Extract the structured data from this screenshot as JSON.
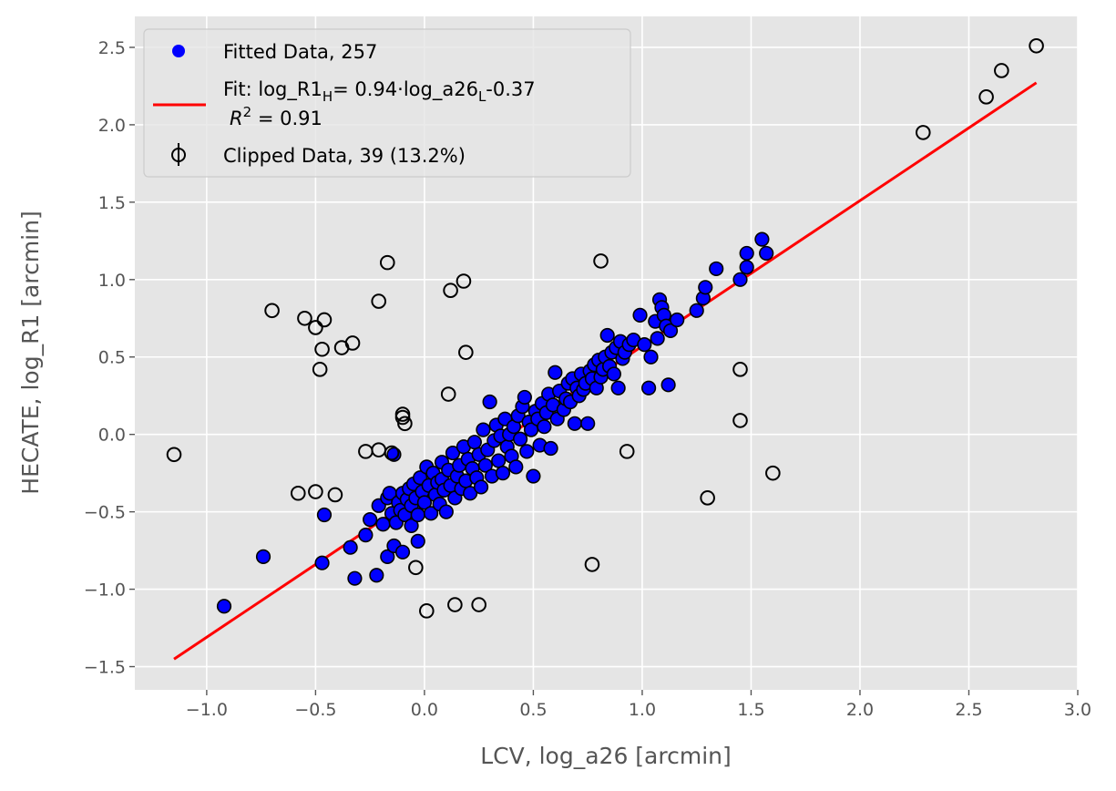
{
  "chart_data": {
    "type": "scatter",
    "title": "",
    "xlabel": "LCV, log_a26 [arcmin]",
    "ylabel": "HECATE, log_R1 [arcmin]",
    "xlim": [
      -1.33,
      3.0
    ],
    "ylim": [
      -1.65,
      2.7
    ],
    "xticks": [
      -1.0,
      -0.5,
      0.0,
      0.5,
      1.0,
      1.5,
      2.0,
      2.5,
      3.0
    ],
    "xtick_labels": [
      "−1.0",
      "−0.5",
      "0.0",
      "0.5",
      "1.0",
      "1.5",
      "2.0",
      "2.5",
      "3.0"
    ],
    "yticks": [
      -1.5,
      -1.0,
      -0.5,
      0.0,
      0.5,
      1.0,
      1.5,
      2.0,
      2.5
    ],
    "ytick_labels": [
      "−1.5",
      "−1.0",
      "−0.5",
      "0.0",
      "0.5",
      "1.0",
      "1.5",
      "2.0",
      "2.5"
    ],
    "grid": true,
    "legend_position": "top-left",
    "colors": {
      "background": "#E5E5E5",
      "grid": "#FFFFFF",
      "fitted": "#0000FF",
      "marker_edge": "#000000",
      "fit_line": "#FF0000",
      "axis_text": "#555555"
    },
    "legend": {
      "fitted_label": "Fitted Data, 257",
      "fit_label_line1_pre": "Fit: log_R1",
      "fit_label_line1_sub1": "H",
      "fit_label_line1_mid": "= 0.94·log_a26",
      "fit_label_line1_sub2": "L",
      "fit_label_line1_post": "-0.37",
      "fit_label_line2_r": "R",
      "fit_label_line2_sup": "2",
      "fit_label_line2_val": " =  0.91",
      "clipped_label": "Clipped Data, 39 (13.2%)"
    },
    "fit_line": {
      "slope": 0.94,
      "intercept": -0.37,
      "x_range": [
        -1.15,
        2.81
      ]
    },
    "series": [
      {
        "name": "Fitted Data, 257",
        "marker": "filled-circle",
        "points": [
          [
            -0.92,
            -1.11
          ],
          [
            -0.74,
            -0.79
          ],
          [
            -0.47,
            -0.83
          ],
          [
            -0.46,
            -0.52
          ],
          [
            -0.34,
            -0.73
          ],
          [
            -0.32,
            -0.93
          ],
          [
            -0.27,
            -0.65
          ],
          [
            -0.25,
            -0.55
          ],
          [
            -0.22,
            -0.91
          ],
          [
            -0.21,
            -0.46
          ],
          [
            -0.19,
            -0.58
          ],
          [
            -0.17,
            -0.79
          ],
          [
            -0.17,
            -0.41
          ],
          [
            -0.16,
            -0.38
          ],
          [
            -0.15,
            -0.51
          ],
          [
            -0.14,
            -0.72
          ],
          [
            -0.14,
            -0.13
          ],
          [
            -0.13,
            -0.57
          ],
          [
            -0.12,
            -0.44
          ],
          [
            -0.11,
            -0.49
          ],
          [
            -0.1,
            -0.76
          ],
          [
            -0.1,
            -0.38
          ],
          [
            -0.09,
            -0.52
          ],
          [
            -0.08,
            -0.42
          ],
          [
            -0.07,
            -0.35
          ],
          [
            -0.06,
            -0.59
          ],
          [
            -0.06,
            -0.46
          ],
          [
            -0.05,
            -0.32
          ],
          [
            -0.04,
            -0.41
          ],
          [
            -0.03,
            -0.69
          ],
          [
            -0.03,
            -0.52
          ],
          [
            -0.02,
            -0.28
          ],
          [
            -0.01,
            -0.37
          ],
          [
            0.0,
            -0.44
          ],
          [
            0.01,
            -0.21
          ],
          [
            0.02,
            -0.33
          ],
          [
            0.03,
            -0.51
          ],
          [
            0.04,
            -0.25
          ],
          [
            0.05,
            -0.39
          ],
          [
            0.06,
            -0.31
          ],
          [
            0.07,
            -0.45
          ],
          [
            0.08,
            -0.18
          ],
          [
            0.08,
            -0.29
          ],
          [
            0.09,
            -0.36
          ],
          [
            0.1,
            -0.5
          ],
          [
            0.11,
            -0.23
          ],
          [
            0.12,
            -0.33
          ],
          [
            0.13,
            -0.12
          ],
          [
            0.14,
            -0.41
          ],
          [
            0.15,
            -0.27
          ],
          [
            0.16,
            -0.2
          ],
          [
            0.17,
            -0.35
          ],
          [
            0.18,
            -0.08
          ],
          [
            0.19,
            -0.3
          ],
          [
            0.2,
            -0.16
          ],
          [
            0.21,
            -0.38
          ],
          [
            0.22,
            -0.22
          ],
          [
            0.23,
            -0.05
          ],
          [
            0.24,
            -0.28
          ],
          [
            0.25,
            -0.13
          ],
          [
            0.26,
            -0.34
          ],
          [
            0.27,
            0.03
          ],
          [
            0.28,
            -0.2
          ],
          [
            0.29,
            -0.1
          ],
          [
            0.3,
            0.21
          ],
          [
            0.31,
            -0.27
          ],
          [
            0.32,
            -0.04
          ],
          [
            0.33,
            0.06
          ],
          [
            0.34,
            -0.17
          ],
          [
            0.35,
            -0.01
          ],
          [
            0.36,
            -0.25
          ],
          [
            0.37,
            0.1
          ],
          [
            0.38,
            -0.08
          ],
          [
            0.39,
            0.0
          ],
          [
            0.4,
            -0.14
          ],
          [
            0.41,
            0.05
          ],
          [
            0.42,
            -0.21
          ],
          [
            0.43,
            0.12
          ],
          [
            0.44,
            -0.03
          ],
          [
            0.45,
            0.18
          ],
          [
            0.46,
            0.24
          ],
          [
            0.47,
            -0.11
          ],
          [
            0.48,
            0.08
          ],
          [
            0.49,
            0.03
          ],
          [
            0.5,
            -0.27
          ],
          [
            0.51,
            0.15
          ],
          [
            0.52,
            0.1
          ],
          [
            0.53,
            -0.07
          ],
          [
            0.54,
            0.2
          ],
          [
            0.55,
            0.05
          ],
          [
            0.56,
            0.14
          ],
          [
            0.57,
            0.26
          ],
          [
            0.58,
            -0.09
          ],
          [
            0.59,
            0.19
          ],
          [
            0.6,
            0.4
          ],
          [
            0.61,
            0.1
          ],
          [
            0.62,
            0.28
          ],
          [
            0.64,
            0.16
          ],
          [
            0.65,
            0.23
          ],
          [
            0.66,
            0.33
          ],
          [
            0.67,
            0.21
          ],
          [
            0.68,
            0.36
          ],
          [
            0.69,
            0.07
          ],
          [
            0.7,
            0.3
          ],
          [
            0.71,
            0.25
          ],
          [
            0.72,
            0.39
          ],
          [
            0.73,
            0.29
          ],
          [
            0.74,
            0.33
          ],
          [
            0.75,
            0.07
          ],
          [
            0.76,
            0.41
          ],
          [
            0.77,
            0.36
          ],
          [
            0.78,
            0.45
          ],
          [
            0.79,
            0.3
          ],
          [
            0.8,
            0.48
          ],
          [
            0.81,
            0.37
          ],
          [
            0.82,
            0.42
          ],
          [
            0.83,
            0.5
          ],
          [
            0.84,
            0.64
          ],
          [
            0.85,
            0.44
          ],
          [
            0.86,
            0.53
          ],
          [
            0.87,
            0.39
          ],
          [
            0.88,
            0.56
          ],
          [
            0.89,
            0.3
          ],
          [
            0.9,
            0.6
          ],
          [
            0.91,
            0.49
          ],
          [
            0.92,
            0.53
          ],
          [
            0.94,
            0.58
          ],
          [
            0.96,
            0.61
          ],
          [
            0.99,
            0.77
          ],
          [
            1.01,
            0.58
          ],
          [
            1.03,
            0.3
          ],
          [
            1.04,
            0.5
          ],
          [
            1.06,
            0.73
          ],
          [
            1.07,
            0.62
          ],
          [
            1.08,
            0.87
          ],
          [
            1.09,
            0.82
          ],
          [
            1.1,
            0.77
          ],
          [
            1.11,
            0.7
          ],
          [
            1.12,
            0.32
          ],
          [
            1.13,
            0.67
          ],
          [
            1.16,
            0.74
          ],
          [
            1.25,
            0.8
          ],
          [
            1.28,
            0.88
          ],
          [
            1.29,
            0.95
          ],
          [
            1.34,
            1.07
          ],
          [
            1.45,
            1.0
          ],
          [
            1.48,
            1.08
          ],
          [
            1.48,
            1.17
          ],
          [
            1.55,
            1.26
          ],
          [
            1.57,
            1.17
          ]
        ]
      },
      {
        "name": "Clipped Data, 39 (13.2%)",
        "marker": "open-circle",
        "points": [
          [
            -1.15,
            -0.13
          ],
          [
            -0.7,
            0.8
          ],
          [
            -0.58,
            -0.38
          ],
          [
            -0.55,
            0.75
          ],
          [
            -0.5,
            0.69
          ],
          [
            -0.5,
            -0.37
          ],
          [
            -0.48,
            0.42
          ],
          [
            -0.47,
            0.55
          ],
          [
            -0.46,
            0.74
          ],
          [
            -0.38,
            0.56
          ],
          [
            -0.33,
            0.59
          ],
          [
            -0.27,
            -0.11
          ],
          [
            -0.21,
            0.86
          ],
          [
            -0.21,
            -0.1
          ],
          [
            -0.17,
            1.11
          ],
          [
            -0.15,
            -0.12
          ],
          [
            -0.1,
            0.11
          ],
          [
            -0.1,
            0.13
          ],
          [
            -0.09,
            0.07
          ],
          [
            -0.04,
            -0.86
          ],
          [
            0.01,
            -1.14
          ],
          [
            0.11,
            0.26
          ],
          [
            0.12,
            0.93
          ],
          [
            0.14,
            -1.1
          ],
          [
            0.18,
            0.99
          ],
          [
            0.19,
            0.53
          ],
          [
            0.25,
            -1.1
          ],
          [
            0.77,
            -0.84
          ],
          [
            0.81,
            1.12
          ],
          [
            0.93,
            -0.11
          ],
          [
            1.3,
            -0.41
          ],
          [
            1.45,
            0.42
          ],
          [
            1.45,
            0.09
          ],
          [
            1.6,
            -0.25
          ],
          [
            2.29,
            1.95
          ],
          [
            2.58,
            2.18
          ],
          [
            2.65,
            2.35
          ],
          [
            2.81,
            2.51
          ],
          [
            -0.41,
            -0.39
          ]
        ]
      }
    ]
  }
}
